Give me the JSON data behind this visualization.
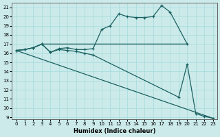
{
  "xlabel": "Humidex (Indice chaleur)",
  "background_color": "#cceaea",
  "grid_color": "#aadddd",
  "line_color": "#1a6060",
  "xlim_min": -0.5,
  "xlim_max": 23.5,
  "ylim_min": 8.8,
  "ylim_max": 21.5,
  "yticks": [
    9,
    10,
    11,
    12,
    13,
    14,
    15,
    16,
    17,
    18,
    19,
    20,
    21
  ],
  "xticks": [
    0,
    1,
    2,
    3,
    4,
    5,
    6,
    7,
    8,
    9,
    10,
    11,
    12,
    13,
    14,
    15,
    16,
    17,
    18,
    19,
    20,
    21,
    22,
    23
  ],
  "series": [
    {
      "x": [
        0,
        1,
        2,
        3,
        4,
        5,
        6,
        7,
        8,
        9,
        10,
        11,
        12,
        13,
        14,
        15,
        16,
        17,
        18,
        20
      ],
      "y": [
        16.3,
        16.4,
        16.6,
        17.0,
        16.1,
        16.5,
        16.6,
        16.4,
        16.4,
        16.5,
        18.6,
        19.0,
        20.3,
        20.0,
        19.9,
        19.9,
        20.0,
        21.2,
        20.5,
        17.0
      ],
      "has_markers": true
    },
    {
      "x": [
        0,
        1,
        2,
        3,
        4,
        20
      ],
      "y": [
        16.3,
        16.4,
        16.6,
        17.0,
        17.0,
        17.0
      ],
      "has_markers": false
    },
    {
      "x": [
        0,
        1,
        2,
        3,
        4,
        5,
        6,
        7,
        8,
        9,
        19,
        20,
        21,
        22,
        23
      ],
      "y": [
        16.3,
        16.4,
        16.6,
        17.0,
        16.1,
        16.4,
        16.3,
        16.2,
        16.0,
        15.8,
        11.2,
        14.8,
        9.4,
        9.1,
        8.9
      ],
      "has_markers": true
    },
    {
      "x": [
        0,
        23
      ],
      "y": [
        16.3,
        8.9
      ],
      "has_markers": false
    }
  ]
}
